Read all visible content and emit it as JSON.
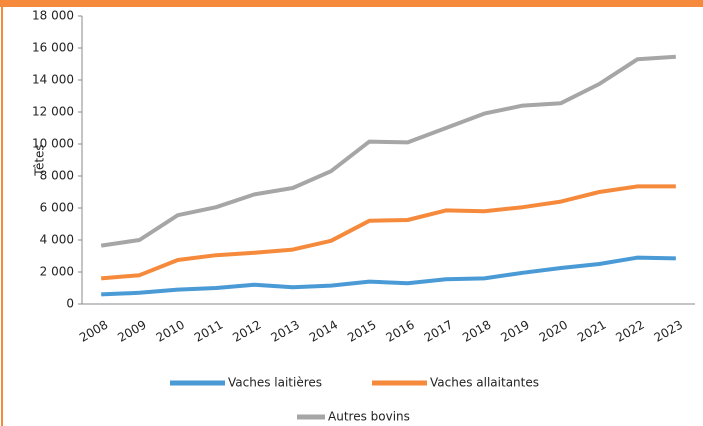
{
  "chart_data": {
    "type": "line",
    "y_label": "Têtes",
    "categories": [
      "2008",
      "2009",
      "2010",
      "2011",
      "2012",
      "2013",
      "2014",
      "2015",
      "2016",
      "2017",
      "2018",
      "2019",
      "2020",
      "2021",
      "2022",
      "2023"
    ],
    "series": [
      {
        "name": "Vaches laitières",
        "color": "#4a9ad6",
        "values": [
          600,
          700,
          900,
          1000,
          1200,
          1050,
          1150,
          1400,
          1300,
          1550,
          1600,
          1950,
          2250,
          2500,
          2900,
          2850
        ]
      },
      {
        "name": "Vaches allaitantes",
        "color": "#f58a3c",
        "values": [
          1600,
          1800,
          2750,
          3050,
          3200,
          3400,
          3950,
          5200,
          5250,
          5850,
          5800,
          6050,
          6400,
          7000,
          7350,
          7350
        ]
      },
      {
        "name": "Autres bovins",
        "color": "#a6a6a6",
        "values": [
          3650,
          4000,
          5550,
          6050,
          6850,
          7250,
          8300,
          10150,
          10100,
          11000,
          11900,
          12400,
          12550,
          13750,
          15300,
          15450
        ]
      }
    ],
    "ylim": [
      0,
      18000
    ],
    "yticks": [
      0,
      {
        "value": 2000,
        "label": "2 000"
      },
      {
        "value": 4000,
        "label": "4 000"
      },
      {
        "value": 6000,
        "label": "6 000"
      },
      {
        "value": 8000,
        "label": "8 000"
      },
      {
        "value": 10000,
        "label": "10 000"
      },
      {
        "value": 12000,
        "label": "12 000"
      },
      {
        "value": 14000,
        "label": "14 000"
      },
      {
        "value": 16000,
        "label": "16 000"
      },
      {
        "value": 18000,
        "label": "18 000"
      }
    ],
    "grid": false
  }
}
